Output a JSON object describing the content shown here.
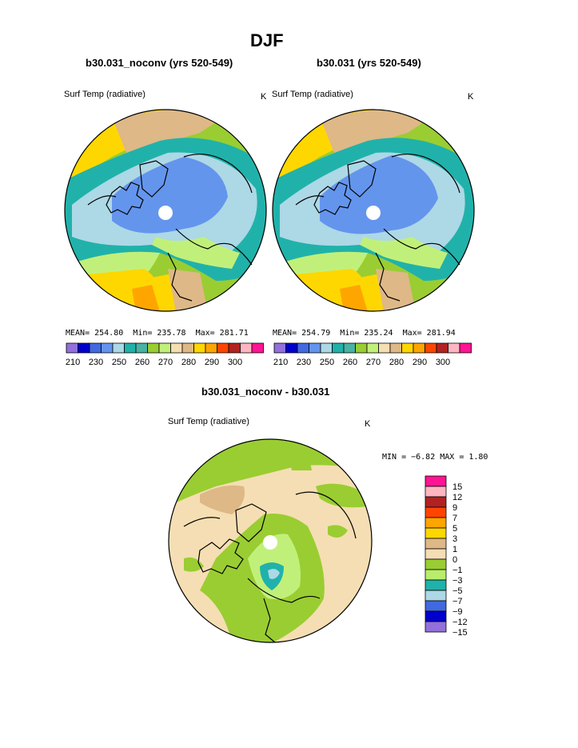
{
  "page": {
    "title": "DJF"
  },
  "panels": [
    {
      "case_title": "b30.031_noconv (yrs 520-549)",
      "variable": "Surf Temp (radiative)",
      "units": "K",
      "stats": {
        "mean": "MEAN= 254.80",
        "min": "Min= 235.78",
        "max": "Max= 281.71"
      }
    },
    {
      "case_title": "b30.031 (yrs 520-549)",
      "variable": "Surf Temp (radiative)",
      "units": "K",
      "stats": {
        "mean": "MEAN= 254.79",
        "min": "Min= 235.24",
        "max": "Max= 281.94"
      }
    }
  ],
  "abs_colorbar": {
    "colors": [
      "#9370db",
      "#0000cd",
      "#4169e1",
      "#6495ed",
      "#add8e6",
      "#20b2aa",
      "#48b2a4",
      "#9acd32",
      "#c1f07a",
      "#f5deb3",
      "#deb887",
      "#ffd700",
      "#ffa500",
      "#ff4500",
      "#b22222",
      "#ffb6c1",
      "#ff1493"
    ],
    "labels": [
      "210",
      "230",
      "250",
      "260",
      "270",
      "280",
      "290",
      "300"
    ]
  },
  "diff": {
    "title": "b30.031_noconv - b30.031",
    "variable": "Surf Temp (radiative)",
    "units": "K",
    "minmax": "MIN =  −6.82  MAX =    1.80",
    "legend": [
      {
        "label": "15",
        "color": "#ff1493"
      },
      {
        "label": "12",
        "color": "#ffb6c1"
      },
      {
        "label": "9",
        "color": "#b22222"
      },
      {
        "label": "7",
        "color": "#ff4500"
      },
      {
        "label": "5",
        "color": "#ffa500"
      },
      {
        "label": "3",
        "color": "#ffd700"
      },
      {
        "label": "1",
        "color": "#deb887"
      },
      {
        "label": "0",
        "color": "#f5deb3"
      },
      {
        "label": "−1",
        "color": "#9acd32"
      },
      {
        "label": "−3",
        "color": "#b9ed6b"
      },
      {
        "label": "−5",
        "color": "#20b2aa"
      },
      {
        "label": "−7",
        "color": "#add8e6"
      },
      {
        "label": "−9",
        "color": "#4169e1"
      },
      {
        "label": "−12",
        "color": "#0000cd"
      },
      {
        "label": "−15",
        "color": "#9370db"
      }
    ]
  }
}
